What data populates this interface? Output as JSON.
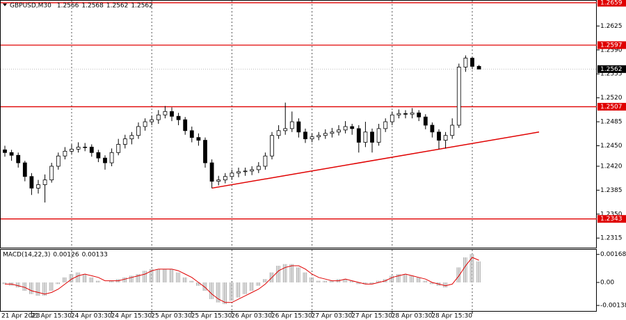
{
  "chart_data": [
    {
      "type": "candlestick",
      "title": "GBPUSD,M30",
      "open": [
        1.2444,
        1.244,
        1.2436,
        1.2425,
        1.2405,
        1.2388,
        1.2393,
        1.24,
        1.242,
        1.2435,
        1.2442,
        1.2445,
        1.2448,
        1.2448,
        1.244,
        1.2432,
        1.2425,
        1.244,
        1.2452,
        1.246,
        1.2465,
        1.2478,
        1.2485,
        1.2488,
        1.2495,
        1.25,
        1.2493,
        1.2488,
        1.2472,
        1.2462,
        1.2458,
        1.2425,
        1.2398,
        1.24,
        1.2405,
        1.241,
        1.2412,
        1.2413,
        1.2415,
        1.242,
        1.2435,
        1.2465,
        1.2472,
        1.2475,
        1.2485,
        1.247,
        1.246,
        1.2463,
        1.2465,
        1.2468,
        1.247,
        1.2473,
        1.2478,
        1.2475,
        1.2455,
        1.247,
        1.2455,
        1.2475,
        1.2485,
        1.2495,
        1.2497,
        1.2496,
        1.2498,
        1.2492,
        1.248,
        1.247,
        1.2458,
        1.2465,
        1.248,
        1.2565,
        1.2578,
        1.2566
      ],
      "high": [
        1.245,
        1.2444,
        1.244,
        1.2428,
        1.241,
        1.24,
        1.2408,
        1.2425,
        1.244,
        1.2448,
        1.2452,
        1.2455,
        1.2454,
        1.2452,
        1.2444,
        1.2436,
        1.2446,
        1.246,
        1.2466,
        1.247,
        1.2484,
        1.249,
        1.2494,
        1.2502,
        1.2508,
        1.2506,
        1.2498,
        1.2492,
        1.2478,
        1.2468,
        1.2462,
        1.243,
        1.2406,
        1.241,
        1.2415,
        1.2418,
        1.2418,
        1.242,
        1.2426,
        1.244,
        1.247,
        1.248,
        1.2513,
        1.25,
        1.249,
        1.2475,
        1.2468,
        1.247,
        1.2474,
        1.2476,
        1.248,
        1.2486,
        1.2482,
        1.248,
        1.2485,
        1.2475,
        1.2482,
        1.249,
        1.25,
        1.2503,
        1.2502,
        1.2505,
        1.2502,
        1.2496,
        1.2484,
        1.2474,
        1.247,
        1.249,
        1.257,
        1.2582,
        1.258,
        1.2568
      ],
      "low": [
        1.2434,
        1.2428,
        1.2418,
        1.2398,
        1.2378,
        1.238,
        1.2367,
        1.2396,
        1.2415,
        1.243,
        1.2438,
        1.244,
        1.2442,
        1.2434,
        1.2426,
        1.2415,
        1.242,
        1.2436,
        1.2446,
        1.2452,
        1.246,
        1.2472,
        1.248,
        1.2482,
        1.249,
        1.2486,
        1.248,
        1.2466,
        1.2455,
        1.245,
        1.2418,
        1.2388,
        1.2392,
        1.2395,
        1.24,
        1.2404,
        1.2406,
        1.2407,
        1.241,
        1.2415,
        1.243,
        1.246,
        1.2466,
        1.247,
        1.2462,
        1.2454,
        1.2455,
        1.2458,
        1.246,
        1.2462,
        1.2465,
        1.2468,
        1.2466,
        1.244,
        1.2448,
        1.244,
        1.245,
        1.247,
        1.248,
        1.249,
        1.249,
        1.249,
        1.2486,
        1.2474,
        1.2462,
        1.2445,
        1.2446,
        1.246,
        1.2476,
        1.2558,
        1.2562,
        1.2562
      ],
      "close": [
        1.244,
        1.2436,
        1.2425,
        1.2405,
        1.2388,
        1.2393,
        1.24,
        1.242,
        1.2435,
        1.2442,
        1.2445,
        1.2448,
        1.2448,
        1.244,
        1.2432,
        1.2425,
        1.244,
        1.2452,
        1.246,
        1.2465,
        1.2478,
        1.2485,
        1.2488,
        1.2495,
        1.25,
        1.2493,
        1.2488,
        1.2472,
        1.2462,
        1.2458,
        1.2425,
        1.2398,
        1.24,
        1.2405,
        1.241,
        1.2412,
        1.2413,
        1.2415,
        1.242,
        1.2435,
        1.2465,
        1.2472,
        1.2475,
        1.2485,
        1.247,
        1.246,
        1.2463,
        1.2465,
        1.2468,
        1.247,
        1.2473,
        1.2478,
        1.2475,
        1.2455,
        1.247,
        1.2455,
        1.2475,
        1.2485,
        1.2495,
        1.2497,
        1.2496,
        1.2498,
        1.2492,
        1.248,
        1.247,
        1.2458,
        1.2465,
        1.248,
        1.2565,
        1.2578,
        1.2566,
        1.2562
      ],
      "ylim": [
        1.2301,
        1.2663
      ],
      "yticks": [
        1.2625,
        {
          "value": 1.259,
          "label": "1.2590"
        },
        1.2555,
        {
          "value": 1.252,
          "label": "1.2520"
        },
        1.2485,
        {
          "value": 1.245,
          "label": "1.2450"
        },
        {
          "value": 1.242,
          "label": "1.2420"
        },
        1.2385,
        {
          "value": 1.235,
          "label": "1.2350"
        },
        1.2315
      ],
      "levels": [
        1.2659,
        1.2597,
        1.2507,
        1.2343
      ],
      "level_color": "#e00000",
      "trendline": {
        "x": [
          31,
          80
        ],
        "y": [
          1.2388,
          1.247
        ]
      },
      "xticks": [
        {
          "value": 4,
          "label": "21 Apr 2023"
        },
        {
          "value": 10,
          "label": "21 Apr 15:30"
        },
        {
          "value": 16,
          "label": "24 Apr 03:30"
        },
        {
          "value": 22,
          "label": "24 Apr 15:30"
        },
        {
          "value": 28,
          "label": "25 Apr 03:30"
        },
        {
          "value": 34,
          "label": "25 Apr 15:30"
        },
        {
          "value": 40,
          "label": "26 Apr 03:30"
        },
        {
          "value": 46,
          "label": "26 Apr 15:30"
        },
        {
          "value": 52,
          "label": "27 Apr 03:30"
        },
        {
          "value": 58,
          "label": "27 Apr 15:30"
        },
        {
          "value": 64,
          "label": "28 Apr 03:30"
        },
        {
          "value": 70,
          "label": "28 Apr 15:30"
        }
      ],
      "grid": true
    },
    {
      "type": "macd",
      "title": "MACD(14,22,3)",
      "values": [
        -0.0001,
        -0.0002,
        -0.0003,
        -0.0005,
        -0.0007,
        -0.0008,
        -0.0008,
        -0.0005,
        -0.0001,
        0.0003,
        0.0005,
        0.0006,
        0.0005,
        0.0003,
        0.0001,
        0,
        0.0001,
        0.0002,
        0.0003,
        0.0004,
        0.0005,
        0.0007,
        0.0008,
        0.0008,
        0.0008,
        0.0008,
        0.0006,
        0.0003,
        0.0001,
        -0.0002,
        -0.0005,
        -0.001,
        -0.0012,
        -0.0013,
        -0.0011,
        -0.0009,
        -0.0007,
        -0.0005,
        -0.0002,
        0.0002,
        0.0006,
        0.001,
        0.0011,
        0.0011,
        0.0009,
        0.0006,
        0.0003,
        0.0001,
        0.0001,
        0.0001,
        0.0002,
        0.0002,
        0.0001,
        -0.0001,
        -0.0001,
        -0.0001,
        0.0001,
        0.0002,
        0.0004,
        0.0005,
        0.0005,
        0.0004,
        0.0003,
        0.0001,
        -0.0001,
        -0.0002,
        -0.0003,
        0,
        0.0009,
        0.0015,
        0.0017,
        0.00126
      ],
      "signal": [
        -0.0001,
        -0.0001,
        -0.0002,
        -0.0003,
        -0.0005,
        -0.0006,
        -0.0007,
        -0.0006,
        -0.0004,
        -0.0001,
        0.0002,
        0.0004,
        0.0005,
        0.0004,
        0.0003,
        0.0001,
        0.0001,
        0.0001,
        0.0002,
        0.0003,
        0.0004,
        0.0005,
        0.0007,
        0.0008,
        0.0008,
        0.0008,
        0.0007,
        0.0005,
        0.0003,
        0,
        -0.0003,
        -0.0007,
        -0.001,
        -0.0012,
        -0.0012,
        -0.001,
        -0.0008,
        -0.0006,
        -0.0004,
        -0.0001,
        0.0003,
        0.0007,
        0.0009,
        0.001,
        0.001,
        0.0008,
        0.0005,
        0.0003,
        0.0002,
        0.0001,
        0.0001,
        0.0002,
        0.0001,
        0,
        -0.0001,
        -0.0001,
        0,
        0.0001,
        0.0003,
        0.0004,
        0.0005,
        0.0004,
        0.0003,
        0.0002,
        0,
        -0.0001,
        -0.0002,
        -0.0001,
        0.0004,
        0.001,
        0.0015,
        0.00133
      ],
      "color": "#a0a0a0",
      "signal_color": "#e00000",
      "ylim": [
        -0.00171,
        0.00196
      ],
      "yticks": [
        -0.00138,
        {
          "value": 0,
          "label": "0.00"
        },
        0.00168
      ]
    }
  ]
}
